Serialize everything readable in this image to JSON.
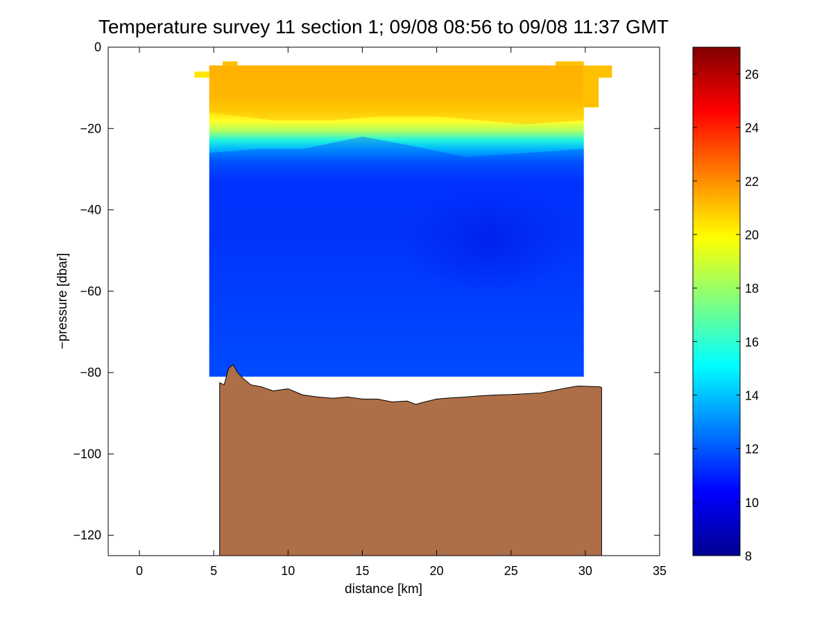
{
  "chart_data": [
    {
      "type": "heatmap",
      "title": "Temperature survey 11 section 1; 09/08 08:56 to 09/08 11:37 GMT",
      "xlabel": "distance [km]",
      "ylabel": "−pressure [dbar]",
      "xlim": [
        -2.1,
        35
      ],
      "ylim": [
        -125,
        0
      ],
      "xticks": [
        0,
        5,
        10,
        15,
        20,
        25,
        30,
        35
      ],
      "xtick_labels": [
        "0",
        "5",
        "10",
        "15",
        "20",
        "25",
        "30",
        "35"
      ],
      "yticks": [
        0,
        -20,
        -40,
        -60,
        -80,
        -100,
        -120
      ],
      "ytick_labels": [
        "0",
        "−20",
        "−40",
        "−60",
        "−80",
        "−100",
        "−120"
      ],
      "grid": false,
      "data_extent": {
        "x": [
          4.7,
          29.9
        ],
        "top_depth": -4.5,
        "bottom_depth": -81
      },
      "surface_cells": [
        {
          "x": [
            3.7,
            4.7
          ],
          "y": [
            -6.0,
            -7.5
          ]
        },
        {
          "x": [
            5.6,
            6.6
          ],
          "y": [
            -3.5,
            -4.5
          ]
        },
        {
          "x": [
            28.0,
            29.9
          ],
          "y": [
            -3.5,
            -4.5
          ]
        },
        {
          "x": [
            29.9,
            31.8
          ],
          "y": [
            -4.5,
            -7.5
          ]
        },
        {
          "x": [
            29.9,
            30.9
          ],
          "y": [
            -7.5,
            -14.8
          ]
        }
      ],
      "temperature_layers": [
        {
          "label": "surface warm layer",
          "temperature": 21.0,
          "top": -4.5,
          "thermocline_depth_profile": [
            [
              4.7,
              -16
            ],
            [
              9,
              -18
            ],
            [
              13,
              -18
            ],
            [
              16,
              -17
            ],
            [
              20,
              -17
            ],
            [
              23,
              -18
            ],
            [
              26,
              -19
            ],
            [
              29.9,
              -18
            ]
          ]
        },
        {
          "label": "thermocline",
          "temperature_range": [
            19.5,
            14.5
          ]
        },
        {
          "label": "cold water below",
          "temperature": 11.0,
          "top_profile": [
            [
              4.7,
              -26
            ],
            [
              8,
              -25
            ],
            [
              11,
              -25
            ],
            [
              15,
              -22
            ],
            [
              18,
              -24
            ],
            [
              22,
              -27
            ],
            [
              26,
              -26
            ],
            [
              29.9,
              -25
            ]
          ]
        }
      ],
      "bathymetry": [
        [
          5.4,
          -82.5
        ],
        [
          5.7,
          -83
        ],
        [
          6.0,
          -79
        ],
        [
          6.3,
          -78
        ],
        [
          6.6,
          -80
        ],
        [
          7.0,
          -81.5
        ],
        [
          7.5,
          -83
        ],
        [
          8.2,
          -83.5
        ],
        [
          9.0,
          -84.5
        ],
        [
          10.0,
          -84
        ],
        [
          11.0,
          -85.5
        ],
        [
          12.0,
          -86
        ],
        [
          13.0,
          -86.3
        ],
        [
          14.0,
          -86
        ],
        [
          15.0,
          -86.5
        ],
        [
          16.0,
          -86.5
        ],
        [
          17.0,
          -87.2
        ],
        [
          18.0,
          -87
        ],
        [
          18.6,
          -87.8
        ],
        [
          19.2,
          -87.2
        ],
        [
          20.0,
          -86.5
        ],
        [
          21.0,
          -86.2
        ],
        [
          22.0,
          -86
        ],
        [
          23.0,
          -85.7
        ],
        [
          24.0,
          -85.5
        ],
        [
          25.0,
          -85.4
        ],
        [
          26.0,
          -85.2
        ],
        [
          27.0,
          -85
        ],
        [
          28.0,
          -84.3
        ],
        [
          28.7,
          -83.8
        ],
        [
          29.5,
          -83.3
        ],
        [
          30.2,
          -83.4
        ],
        [
          31.0,
          -83.5
        ],
        [
          31.1,
          -83.7
        ]
      ],
      "seafloor_color": "#ad6e48",
      "colorbar": {
        "colormap": "jet",
        "limits": [
          8,
          27
        ],
        "ticks": [
          8,
          10,
          12,
          14,
          16,
          18,
          20,
          22,
          24,
          26
        ],
        "tick_labels": [
          "8",
          "10",
          "12",
          "14",
          "16",
          "18",
          "20",
          "22",
          "24",
          "26"
        ]
      }
    }
  ]
}
